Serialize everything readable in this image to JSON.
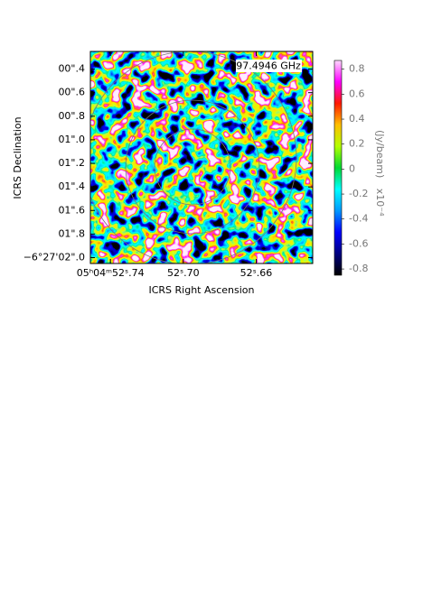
{
  "chart_data": {
    "type": "image",
    "annotation": "97.4946 GHz",
    "xlabel": "ICRS Right Ascension",
    "ylabel": "ICRS Declination",
    "colorbar_label": "(Jy/beam)",
    "colorbar_scale": "x10⁻⁴",
    "xlim": [
      52.751,
      52.629
    ],
    "xticks": [
      {
        "value": 52.74,
        "label": "05ʰ04ᵐ52ˢ.74"
      },
      {
        "value": 52.7,
        "label": "52ˢ.70"
      },
      {
        "value": 52.66,
        "label": "52ˢ.66"
      }
    ],
    "ylim": [
      0.25,
      2.05
    ],
    "yticks": [
      {
        "value": 0.4,
        "label": "00\".4"
      },
      {
        "value": 0.6,
        "label": "00\".6"
      },
      {
        "value": 0.8,
        "label": "00\".8"
      },
      {
        "value": 1.0,
        "label": "01\".0"
      },
      {
        "value": 1.2,
        "label": "01\".2"
      },
      {
        "value": 1.4,
        "label": "01\".4"
      },
      {
        "value": 1.6,
        "label": "01\".6"
      },
      {
        "value": 1.8,
        "label": "01\".8"
      },
      {
        "value": 2.0,
        "label": "−6°27'02\".0"
      }
    ],
    "clim": [
      -0.85,
      0.87
    ],
    "cticks": [
      0.8,
      0.6,
      0.4,
      0.2,
      0,
      -0.2,
      -0.4,
      -0.6,
      -0.8
    ],
    "colormap": "jet"
  }
}
